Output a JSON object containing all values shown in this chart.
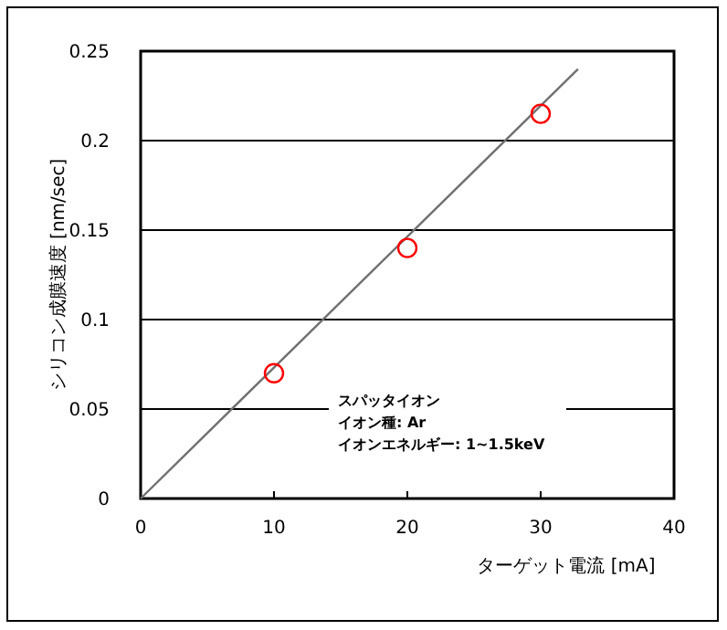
{
  "chart_data": {
    "type": "scatter",
    "xlabel": "ターゲット電流 [mA]",
    "ylabel": "シリコン成膜速度 [nm/sec]",
    "xlim": [
      0,
      40
    ],
    "xticks": [
      0,
      10,
      20,
      30,
      40
    ],
    "ylim": [
      0,
      0.25
    ],
    "yticks": [
      0,
      0.05,
      0.1,
      0.15,
      0.2,
      0.25
    ],
    "grid": "y",
    "series": [
      {
        "type": "scatter",
        "color": "#ff0000",
        "marker": "circle",
        "x": [
          10,
          20,
          30
        ],
        "values": [
          0.07,
          0.14,
          0.215
        ]
      },
      {
        "type": "line",
        "color": "#707070",
        "marker": "none",
        "line_style": "solid",
        "x": [
          0,
          32.8
        ],
        "values": [
          0,
          0.24
        ]
      }
    ],
    "annotations": [
      "スパッタイオン",
      "イオン種: Ar",
      "イオンエネルギー: 1~1.5keV"
    ]
  }
}
